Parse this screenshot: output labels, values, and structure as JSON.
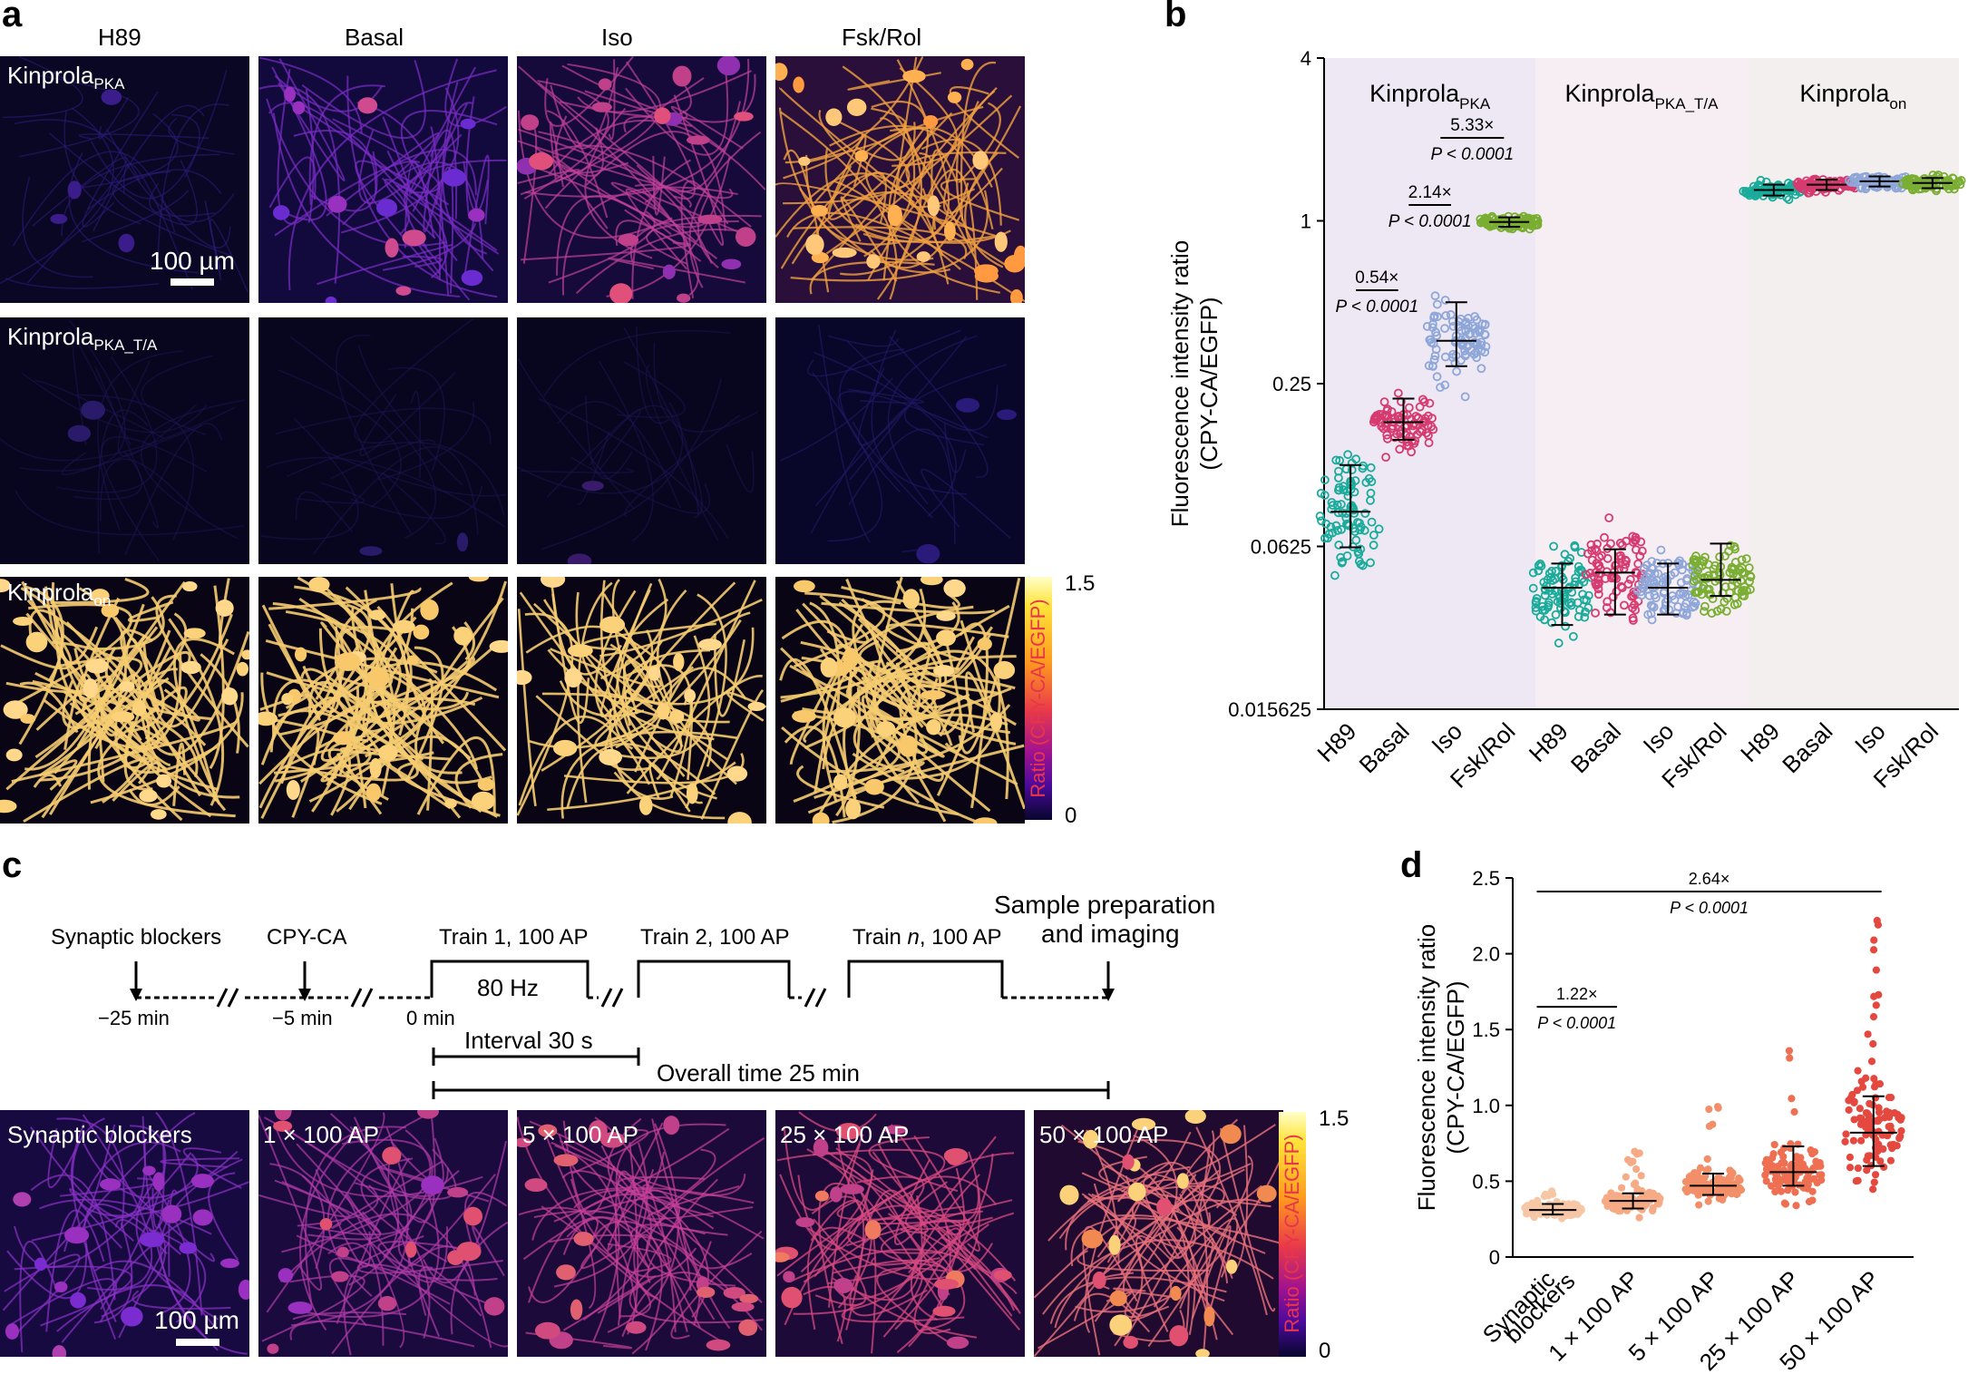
{
  "figure": {
    "panel_a": {
      "letter": "a",
      "columns": [
        "H89",
        "Basal",
        "Iso",
        "Fsk/Rol"
      ],
      "rows": [
        {
          "base": "Kinprola",
          "sub": "PKA"
        },
        {
          "base": "Kinprola",
          "sub": "PKA_T/A"
        },
        {
          "base": "Kinprola",
          "sub": "on"
        }
      ],
      "scale_bar": "100 µm",
      "colorbar": {
        "label": "Ratio (CPY-CA/EGFP)",
        "max": "1.5",
        "min": "0"
      }
    },
    "panel_b": {
      "letter": "b",
      "groups": [
        {
          "base": "Kinprola",
          "sub": "PKA"
        },
        {
          "base": "Kinprola",
          "sub": "PKA_T/A"
        },
        {
          "base": "Kinprola",
          "sub": "on"
        }
      ],
      "ylabel_line1": "Fluorescence intensity ratio",
      "ylabel_line2": "(CPY-CA/EGFP)",
      "yticks": [
        "4",
        "1",
        "0.25",
        "0.0625",
        "0.015625"
      ],
      "xticks": [
        "H89",
        "Basal",
        "Iso",
        "Fsk/Rol",
        "H89",
        "Basal",
        "Iso",
        "Fsk/Rol",
        "H89",
        "Basal",
        "Iso",
        "Fsk/Rol"
      ],
      "annotations": [
        {
          "fold": "0.54×",
          "p": "P < 0.0001"
        },
        {
          "fold": "2.14×",
          "p": "P < 0.0001"
        },
        {
          "fold": "5.33×",
          "p": "P < 0.0001"
        }
      ]
    },
    "panel_c": {
      "letter": "c",
      "steps": {
        "blockers": "Synaptic blockers",
        "cpy": "CPY-CA",
        "train1": "Train 1, 100 AP",
        "train2": "Train 2, 100 AP",
        "trainn_a": "Train ",
        "trainn_n": "n",
        "trainn_b": ", 100 AP",
        "sample1": "Sample preparation",
        "sample2": "and imaging"
      },
      "times": [
        "−25 min",
        "−5 min",
        "0 min"
      ],
      "freq": "80 Hz",
      "interval": "Interval 30 s",
      "overall": "Overall time 25 min",
      "image_labels": [
        "Synaptic blockers",
        "1 × 100 AP",
        "5 × 100 AP",
        "25 × 100 AP",
        "50 × 100 AP"
      ],
      "scale_bar": "100 µm",
      "colorbar": {
        "label": "Ratio (CPY-CA/EGFP)",
        "max": "1.5",
        "min": "0"
      }
    },
    "panel_d": {
      "letter": "d",
      "ylabel_line1": "Fluorescence intensity ratio",
      "ylabel_line2": "(CPY-CA/EGFP)",
      "yticks": [
        "2.5",
        "2.0",
        "1.5",
        "1.0",
        "0.5",
        "0"
      ],
      "xticks": [
        "Synaptic blockers",
        "1 × 100 AP",
        "5 × 100 AP",
        "25 × 100 AP",
        "50 × 100 AP"
      ],
      "xtick_blockers_1": "Synaptic",
      "xtick_blockers_2": "blockers",
      "annotations": [
        {
          "fold": "1.22×",
          "p": "P < 0.0001"
        },
        {
          "fold": "2.64×",
          "p": "P < 0.0001"
        }
      ]
    }
  },
  "chart_data": [
    {
      "type": "scatter",
      "title": "",
      "ylabel": "Fluorescence intensity ratio (CPY-CA/EGFP)",
      "yscale": "log2",
      "ylim": [
        0.015625,
        4
      ],
      "categories": [
        "H89",
        "Basal",
        "Iso",
        "Fsk/Rol",
        "H89",
        "Basal",
        "Iso",
        "Fsk/Rol",
        "H89",
        "Basal",
        "Iso",
        "Fsk/Rol"
      ],
      "series": [
        {
          "name": "KinprolaPKA",
          "median": [
            0.084,
            0.18,
            0.36,
            0.99
          ],
          "q1": [
            0.062,
            0.155,
            0.29,
            0.95
          ],
          "q3": [
            0.125,
            0.22,
            0.5,
            1.03
          ],
          "min": [
            0.036,
            0.1,
            0.15,
            0.83
          ],
          "max": [
            0.24,
            0.32,
            0.7,
            1.18
          ]
        },
        {
          "name": "KinprolaPKA_T/A",
          "median": [
            0.044,
            0.05,
            0.044,
            0.047
          ],
          "q1": [
            0.032,
            0.035,
            0.035,
            0.041
          ],
          "q3": [
            0.054,
            0.061,
            0.054,
            0.064
          ],
          "min": [
            0.016,
            0.019,
            0.021,
            0.03
          ],
          "max": [
            0.1,
            0.105,
            0.14,
            0.08
          ]
        },
        {
          "name": "Kinprolaon",
          "median": [
            1.3,
            1.36,
            1.4,
            1.38
          ],
          "q1": [
            1.24,
            1.3,
            1.34,
            1.32
          ],
          "q3": [
            1.36,
            1.42,
            1.46,
            1.44
          ],
          "min": [
            1.14,
            1.18,
            1.24,
            1.2
          ],
          "max": [
            1.48,
            1.52,
            1.58,
            1.56
          ]
        }
      ],
      "colors": [
        "#1aab9b",
        "#d63a6e",
        "#8ea6d8",
        "#7aae32"
      ],
      "background": [
        "#ede8f3",
        "#f6eef3",
        "#f4efef"
      ]
    },
    {
      "type": "scatter",
      "title": "",
      "ylabel": "Fluorescence intensity ratio (CPY-CA/EGFP)",
      "ylim": [
        0,
        2.5
      ],
      "categories": [
        "Synaptic blockers",
        "1 × 100 AP",
        "5 × 100 AP",
        "25 × 100 AP",
        "50 × 100 AP"
      ],
      "median": [
        0.31,
        0.37,
        0.47,
        0.56,
        0.82
      ],
      "q1": [
        0.28,
        0.32,
        0.41,
        0.47,
        0.6
      ],
      "q3": [
        0.35,
        0.42,
        0.55,
        0.73,
        1.06
      ],
      "min": [
        0.2,
        0.2,
        0.25,
        0.22,
        0.27
      ],
      "max": [
        0.44,
        0.7,
        1.03,
        1.39,
        2.28
      ],
      "colors": [
        "#f7c6a5",
        "#f6aa85",
        "#f28f68",
        "#ee6f52",
        "#e4483f"
      ]
    }
  ]
}
